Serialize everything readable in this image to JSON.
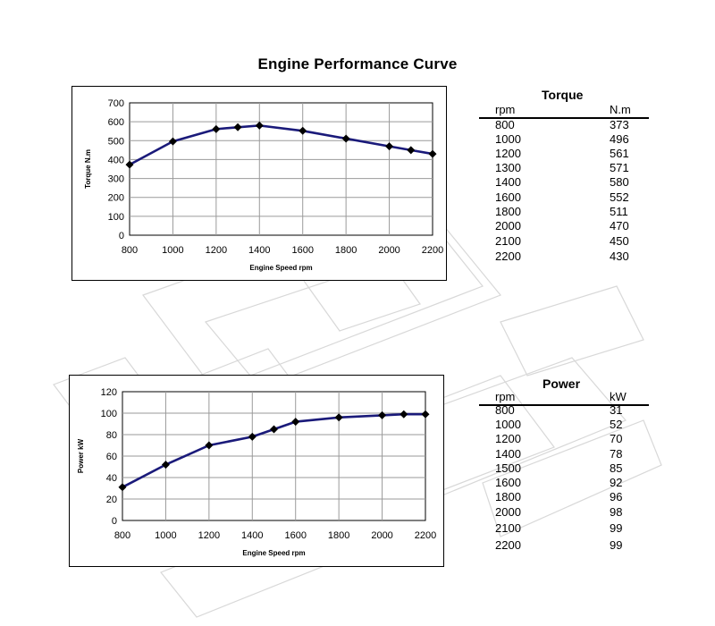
{
  "page": {
    "title": "Engine Performance Curve"
  },
  "colors": {
    "series": "#1a1a7a",
    "marker": "#000000",
    "grid": "#9a9a9a",
    "watermark": "#d8d8d8"
  },
  "chart_data": [
    {
      "type": "line",
      "title": "",
      "xlabel": "Engine Speed rpm",
      "ylabel": "Torque N.m",
      "xlim": [
        800,
        2200
      ],
      "ylim": [
        0,
        700
      ],
      "xticks": [
        800,
        1000,
        1200,
        1400,
        1600,
        1800,
        2000,
        2200
      ],
      "yticks": [
        0,
        100,
        200,
        300,
        400,
        500,
        600,
        700
      ],
      "grid": true,
      "series": [
        {
          "x": [
            800,
            1000,
            1200,
            1300,
            1400,
            1600,
            1800,
            2000,
            2100,
            2200
          ],
          "y": [
            373,
            496,
            561,
            571,
            580,
            552,
            511,
            470,
            450,
            430
          ]
        }
      ]
    },
    {
      "type": "line",
      "title": "",
      "xlabel": "Engine Speed rpm",
      "ylabel": "Power kW",
      "xlim": [
        800,
        2200
      ],
      "ylim": [
        0,
        120
      ],
      "xticks": [
        800,
        1000,
        1200,
        1400,
        1600,
        1800,
        2000,
        2200
      ],
      "yticks": [
        0,
        20,
        40,
        60,
        80,
        100,
        120
      ],
      "grid": true,
      "series": [
        {
          "x": [
            800,
            1000,
            1200,
            1400,
            1500,
            1600,
            1800,
            2000,
            2100,
            2200
          ],
          "y": [
            31,
            52,
            70,
            78,
            85,
            92,
            96,
            98,
            99,
            99
          ]
        }
      ]
    }
  ],
  "torque_table": {
    "title": "Torque",
    "headers": [
      "rpm",
      "N.m"
    ],
    "rows": [
      [
        "800",
        "373"
      ],
      [
        "1000",
        "496"
      ],
      [
        "1200",
        "561"
      ],
      [
        "1300",
        "571"
      ],
      [
        "1400",
        "580"
      ],
      [
        "1600",
        "552"
      ],
      [
        "1800",
        "511"
      ],
      [
        "2000",
        "470"
      ],
      [
        "2100",
        "450"
      ],
      [
        "2200",
        "430"
      ]
    ]
  },
  "power_table": {
    "title": "Power",
    "headers": [
      "rpm",
      "kW"
    ],
    "rows": [
      [
        "800",
        "31"
      ],
      [
        "1000",
        "52"
      ],
      [
        "1200",
        "70"
      ],
      [
        "1400",
        "78"
      ],
      [
        "1500",
        "85"
      ],
      [
        "1600",
        "92"
      ],
      [
        "1800",
        "96"
      ],
      [
        "2000",
        "98"
      ],
      [
        "2100",
        "99"
      ],
      [
        "2200",
        "99"
      ]
    ]
  }
}
